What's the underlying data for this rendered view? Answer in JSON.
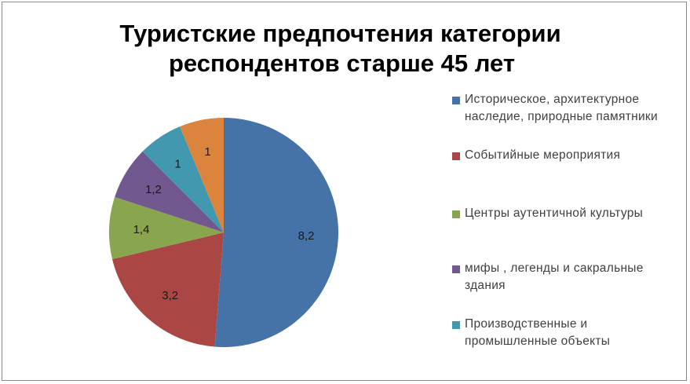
{
  "chart_data": {
    "type": "pie",
    "title_lines": [
      "Туристские предпочтения категории",
      "респондентов старше 45 лет"
    ],
    "slices": [
      {
        "label": "Историческое, архитектурное наследие, природные памятники",
        "value": 8.2,
        "data_label": "8,2",
        "color": "#4572a7"
      },
      {
        "label": "Событийные мероприятия",
        "value": 3.2,
        "data_label": "3,2",
        "color": "#aa4643"
      },
      {
        "label": "Центры аутентичной культуры",
        "value": 1.4,
        "data_label": "1,4",
        "color": "#89a54e"
      },
      {
        "label": "мифы , легенды и  сакральные здания",
        "value": 1.2,
        "data_label": "1,2",
        "color": "#71588f"
      },
      {
        "label": "Производственные и промышленные объекты",
        "value": 1,
        "data_label": "1",
        "color": "#4198af"
      },
      {
        "label": "",
        "value": 1,
        "data_label": "1",
        "color": "#db843d"
      }
    ],
    "legend_placement": "right",
    "start_angle_deg": 0,
    "direction": "clockwise"
  }
}
